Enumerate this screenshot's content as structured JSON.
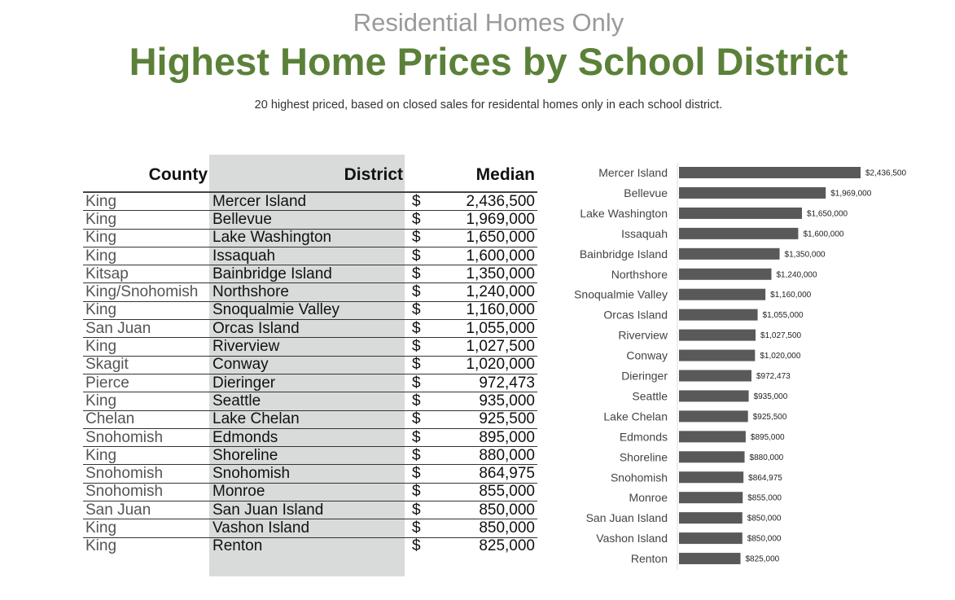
{
  "header": {
    "pretitle": "Residential Homes Only",
    "title": "Highest Home Prices by School District",
    "subtitle": "20 highest priced, based on closed sales for residental homes only in each school district."
  },
  "table": {
    "columns": [
      "County",
      "District",
      "Median"
    ],
    "currency": "$",
    "rows": [
      [
        "King",
        "Mercer Island",
        "2,436,500"
      ],
      [
        "King",
        "Bellevue",
        "1,969,000"
      ],
      [
        "King",
        "Lake Washington",
        "1,650,000"
      ],
      [
        "King",
        "Issaquah",
        "1,600,000"
      ],
      [
        "Kitsap",
        "Bainbridge Island",
        "1,350,000"
      ],
      [
        "King/Snohomish",
        "Northshore",
        "1,240,000"
      ],
      [
        "King",
        "Snoqualmie Valley",
        "1,160,000"
      ],
      [
        "San Juan",
        "Orcas Island",
        "1,055,000"
      ],
      [
        "King",
        "Riverview",
        "1,027,500"
      ],
      [
        "Skagit",
        "Conway",
        "1,020,000"
      ],
      [
        "Pierce",
        "Dieringer",
        "972,473"
      ],
      [
        "King",
        "Seattle",
        "935,000"
      ],
      [
        "Chelan",
        "Lake Chelan",
        "925,500"
      ],
      [
        "Snohomish",
        "Edmonds",
        "895,000"
      ],
      [
        "King",
        "Shoreline",
        "880,000"
      ],
      [
        "Snohomish",
        "Snohomish",
        "864,975"
      ],
      [
        "Snohomish",
        "Monroe",
        "855,000"
      ],
      [
        "San Juan",
        "San Juan Island",
        "850,000"
      ],
      [
        "King",
        "Vashon Island",
        "850,000"
      ],
      [
        "King",
        "Renton",
        "825,000"
      ]
    ]
  },
  "chart_data": {
    "type": "bar",
    "orientation": "horizontal",
    "bar_color": "#595959",
    "categories": [
      "Mercer Island",
      "Bellevue",
      "Lake Washington",
      "Issaquah",
      "Bainbridge Island",
      "Northshore",
      "Snoqualmie Valley",
      "Orcas Island",
      "Riverview",
      "Conway",
      "Dieringer",
      "Seattle",
      "Lake Chelan",
      "Edmonds",
      "Shoreline",
      "Snohomish",
      "Monroe",
      "San Juan Island",
      "Vashon Island",
      "Renton"
    ],
    "values": [
      2436500,
      1969000,
      1650000,
      1600000,
      1350000,
      1240000,
      1160000,
      1055000,
      1027500,
      1020000,
      972473,
      935000,
      925500,
      895000,
      880000,
      864975,
      855000,
      850000,
      850000,
      825000
    ],
    "data_labels": [
      "$2,436,500",
      "$1,969,000",
      "$1,650,000",
      "$1,600,000",
      "$1,350,000",
      "$1,240,000",
      "$1,160,000",
      "$1,055,000",
      "$1,027,500",
      "$1,020,000",
      "$972,473",
      "$935,000",
      "$925,500",
      "$895,000",
      "$880,000",
      "$864,975",
      "$855,000",
      "$850,000",
      "$850,000",
      "$825,000"
    ]
  }
}
